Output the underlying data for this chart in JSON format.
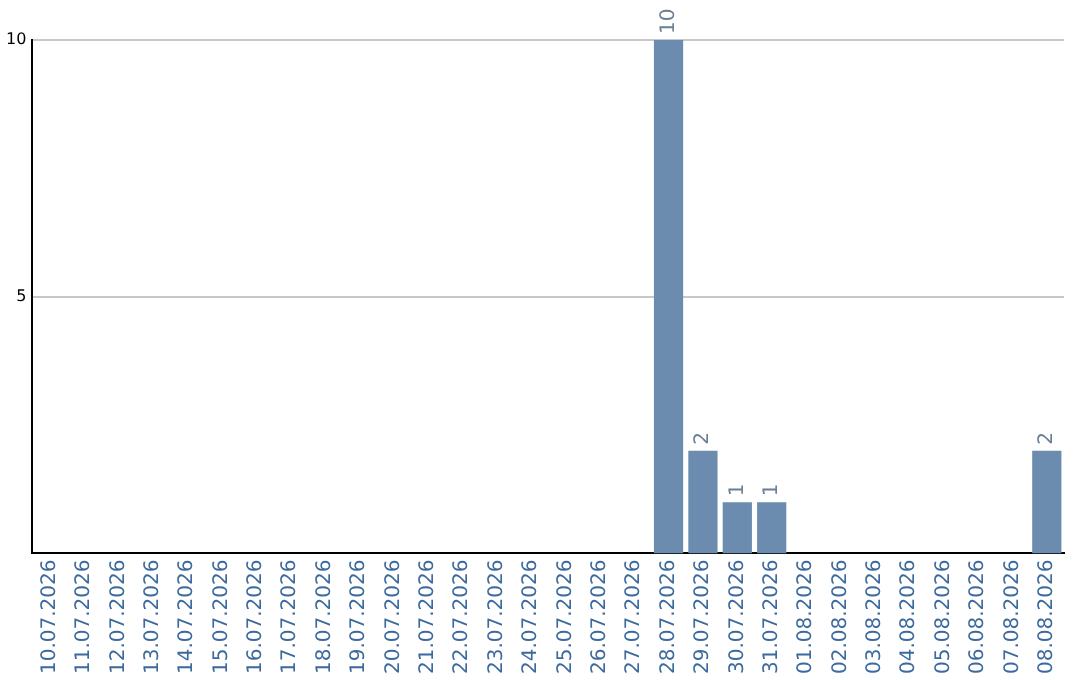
{
  "chart_data": {
    "type": "bar",
    "categories": [
      "10.07.2026",
      "11.07.2026",
      "12.07.2026",
      "13.07.2026",
      "14.07.2026",
      "15.07.2026",
      "16.07.2026",
      "17.07.2026",
      "18.07.2026",
      "19.07.2026",
      "20.07.2026",
      "21.07.2026",
      "22.07.2026",
      "23.07.2026",
      "24.07.2026",
      "25.07.2026",
      "26.07.2026",
      "27.07.2026",
      "28.07.2026",
      "29.07.2026",
      "30.07.2026",
      "31.07.2026",
      "01.08.2026",
      "02.08.2026",
      "03.08.2026",
      "04.08.2026",
      "05.08.2026",
      "06.08.2026",
      "07.08.2026",
      "08.08.2026"
    ],
    "values": [
      0,
      0,
      0,
      0,
      0,
      0,
      0,
      0,
      0,
      0,
      0,
      0,
      0,
      0,
      0,
      0,
      0,
      0,
      10,
      2,
      1,
      1,
      0,
      0,
      0,
      0,
      0,
      0,
      0,
      2
    ],
    "value_labels": [
      null,
      null,
      null,
      null,
      null,
      null,
      null,
      null,
      null,
      null,
      null,
      null,
      null,
      null,
      null,
      null,
      null,
      null,
      "10",
      "2",
      "1",
      "1",
      null,
      null,
      null,
      null,
      null,
      null,
      null,
      "2"
    ],
    "color": "#6b8cae",
    "ylim": [
      0,
      10
    ],
    "yticks": [
      5,
      10
    ],
    "grid": "y",
    "legend": false
  }
}
